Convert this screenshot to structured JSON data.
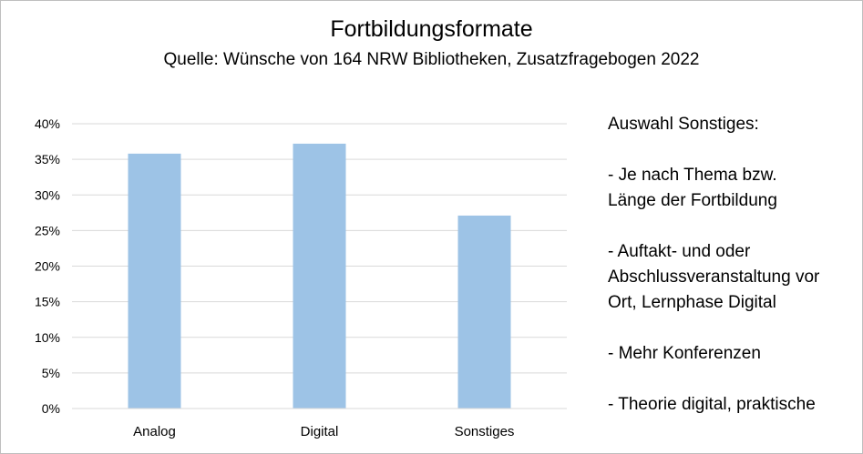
{
  "header": {
    "title": "Fortbildungsformate",
    "subtitle": "Quelle: Wünsche von 164 NRW Bibliotheken, Zusatzfragebogen 2022"
  },
  "chart_data": {
    "type": "bar",
    "title": "Fortbildungsformate",
    "subtitle": "Quelle: Wünsche von 164 NRW Bibliotheken, Zusatzfragebogen 2022",
    "categories": [
      "Analog",
      "Digital",
      "Sonstiges"
    ],
    "values": [
      35.8,
      37.2,
      27.1
    ],
    "unit": "%",
    "ylim": [
      0,
      40
    ],
    "yticks": [
      0,
      5,
      10,
      15,
      20,
      25,
      30,
      35,
      40
    ],
    "ytick_labels": [
      "0%",
      "5%",
      "10%",
      "15%",
      "20%",
      "25%",
      "30%",
      "35%",
      "40%"
    ],
    "xlabel": "",
    "ylabel": "",
    "grid": true,
    "legend": "none",
    "bar_color": "#9dc3e6",
    "grid_color": "#d9d9d9"
  },
  "notes": {
    "heading": "Auswahl Sonstiges:",
    "items": [
      [
        "- Je nach Thema bzw.",
        "Länge der Fortbildung"
      ],
      [
        "- Auftakt- und oder",
        "Abschlussveranstaltung vor",
        "Ort, Lernphase Digital"
      ],
      [
        "- Mehr Konferenzen"
      ],
      [
        "- Theorie digital, praktische"
      ]
    ]
  }
}
